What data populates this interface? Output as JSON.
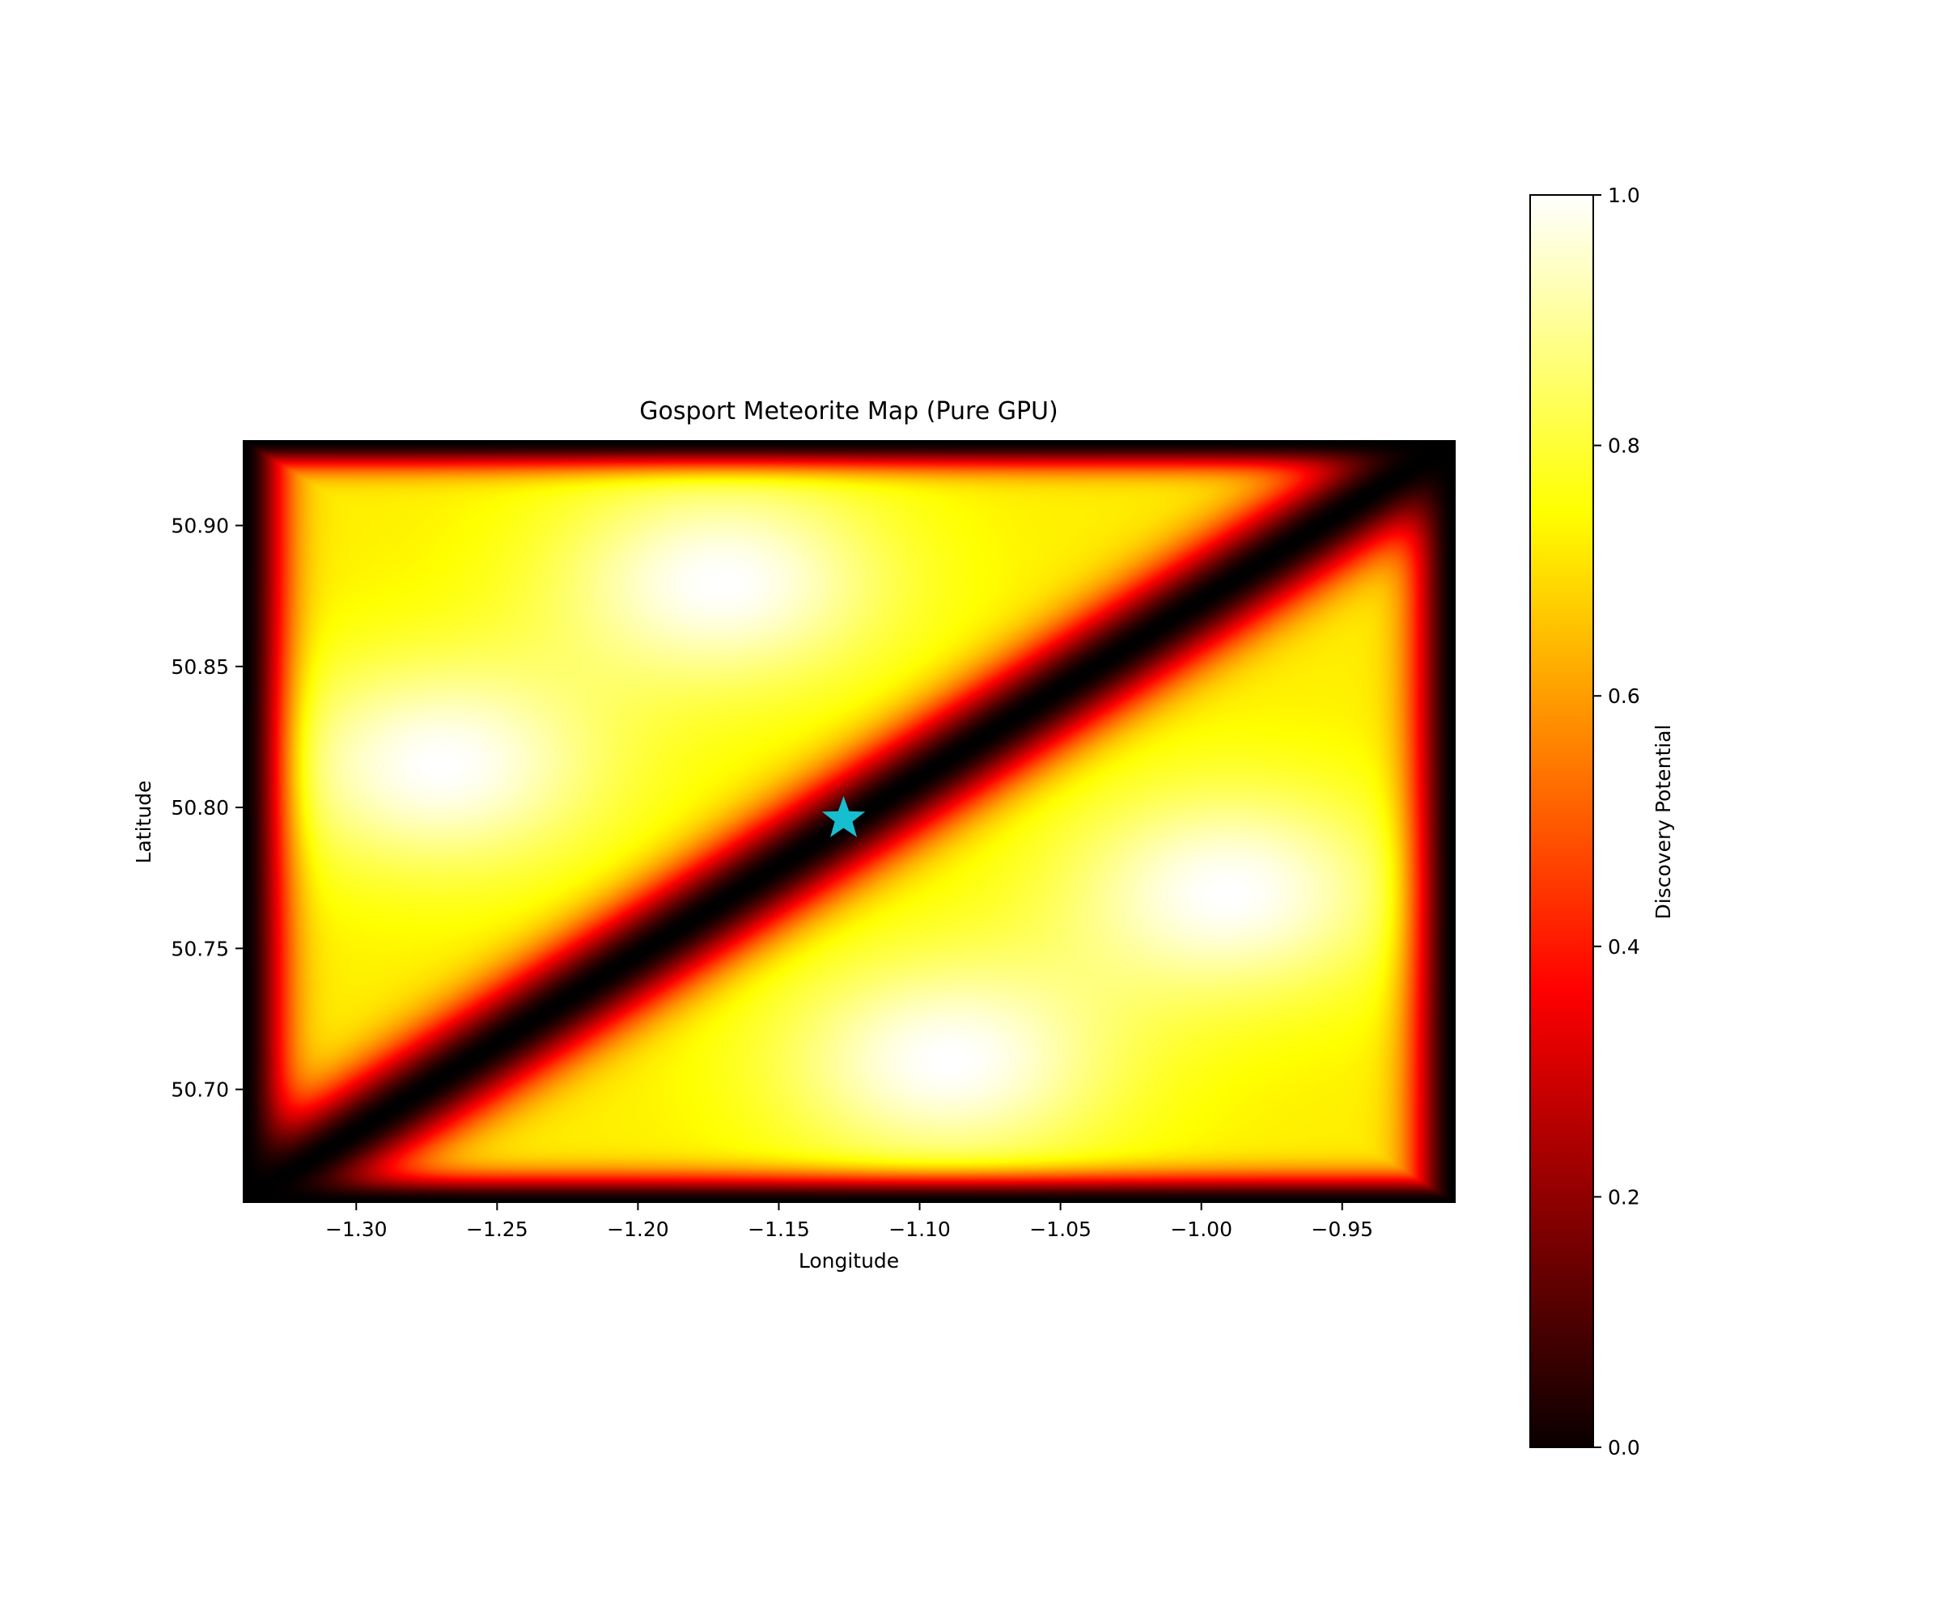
{
  "chart_data": {
    "type": "heatmap",
    "title": "Gosport Meteorite Map (Pure GPU)",
    "xlabel": "Longitude",
    "ylabel": "Latitude",
    "xlim": [
      -1.34,
      -0.91
    ],
    "ylim": [
      50.66,
      50.93
    ],
    "xticks": [
      -1.3,
      -1.25,
      -1.2,
      -1.15,
      -1.1,
      -1.05,
      -1.0,
      -0.95
    ],
    "xtick_labels": [
      "−1.30",
      "−1.25",
      "−1.20",
      "−1.15",
      "−1.10",
      "−1.05",
      "−1.00",
      "−0.95"
    ],
    "yticks": [
      50.7,
      50.75,
      50.8,
      50.85,
      50.9
    ],
    "ytick_labels": [
      "50.70",
      "50.75",
      "50.80",
      "50.85",
      "50.90"
    ],
    "colormap": "hot",
    "colorbar": {
      "label": "Discovery Potential",
      "range": [
        0.0,
        1.0
      ],
      "ticks": [
        0.0,
        0.2,
        0.4,
        0.6,
        0.8,
        1.0
      ],
      "tick_labels": [
        "0.0",
        "0.2",
        "0.4",
        "0.6",
        "0.8",
        "1.0"
      ]
    },
    "field": {
      "description": "Discovery potential is low along the plot border and along the diagonal from the lower-left corner to the upper-right corner; high in the two triangular regions.",
      "minimum_line": {
        "from": [
          -1.34,
          50.66
        ],
        "to": [
          -0.91,
          50.93
        ]
      },
      "hotspots": [
        {
          "lon": -1.27,
          "lat": 50.815,
          "value": 1.0
        },
        {
          "lon": -1.17,
          "lat": 50.88,
          "value": 1.0
        },
        {
          "lon": -0.99,
          "lat": 50.77,
          "value": 1.0
        },
        {
          "lon": -1.09,
          "lat": 50.71,
          "value": 1.0
        }
      ]
    },
    "markers": [
      {
        "type": "star",
        "lon": -1.127,
        "lat": 50.796,
        "color": "#17becf"
      }
    ],
    "grid": false
  }
}
